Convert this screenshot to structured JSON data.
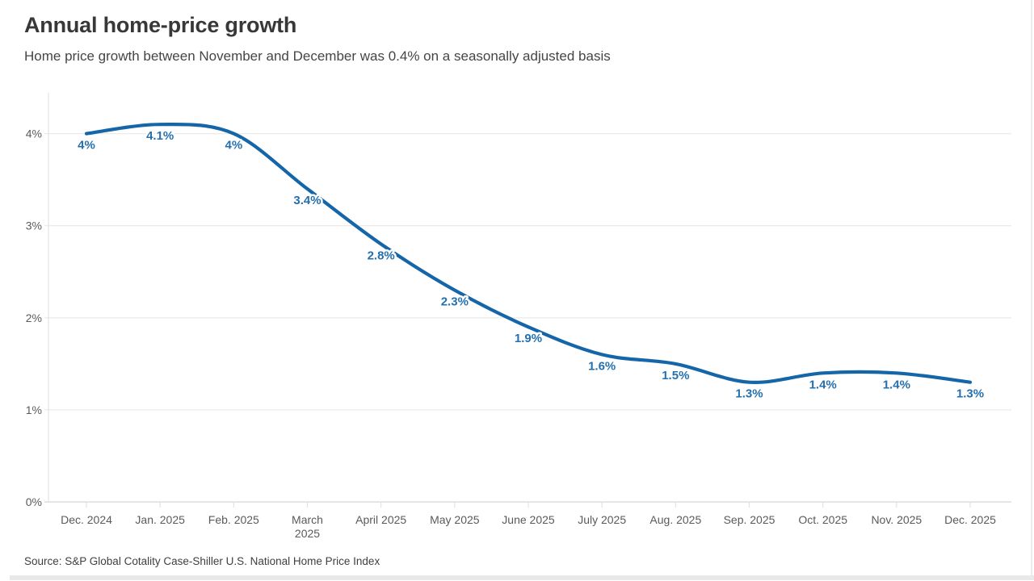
{
  "header": {
    "title": "Annual home-price growth",
    "subtitle": "Home price growth between November and December was 0.4% on a seasonally adjusted basis"
  },
  "chart_data": {
    "type": "line",
    "title": "Annual home-price growth",
    "categories": [
      "Dec. 2024",
      "Jan. 2025",
      "Feb. 2025",
      "March\n2025",
      "April 2025",
      "May 2025",
      "June 2025",
      "July 2025",
      "Aug. 2025",
      "Sep. 2025",
      "Oct. 2025",
      "Nov. 2025",
      "Dec. 2025"
    ],
    "values": [
      4,
      4.1,
      4,
      3.4,
      2.8,
      2.3,
      1.9,
      1.6,
      1.5,
      1.3,
      1.4,
      1.4,
      1.3
    ],
    "data_labels": [
      "4%",
      "4.1%",
      "4%",
      "3.4%",
      "2.8%",
      "2.3%",
      "1.9%",
      "1.6%",
      "1.5%",
      "1.3%",
      "1.4%",
      "1.4%",
      "1.3%"
    ],
    "yticks": [
      {
        "value": 0,
        "label": "0%"
      },
      {
        "value": 1,
        "label": "1%"
      },
      {
        "value": 2,
        "label": "2%"
      },
      {
        "value": 3,
        "label": "3%"
      },
      {
        "value": 4,
        "label": "4%"
      }
    ],
    "ylim": [
      0,
      4.45
    ],
    "xlabel": "",
    "ylabel": "",
    "grid": "horizontal",
    "legend": "none",
    "colors": {
      "line": "#1566a9",
      "data_label": "#2470ae",
      "gridline": "#ebebeb",
      "axis_line": "#d8d8d8",
      "tick": "#e2e2e2",
      "axis_text": "#5a5a5a"
    }
  },
  "footer": {
    "source": "Source: S&P Global Cotality Case-Shiller U.S. National Home Price Index"
  }
}
